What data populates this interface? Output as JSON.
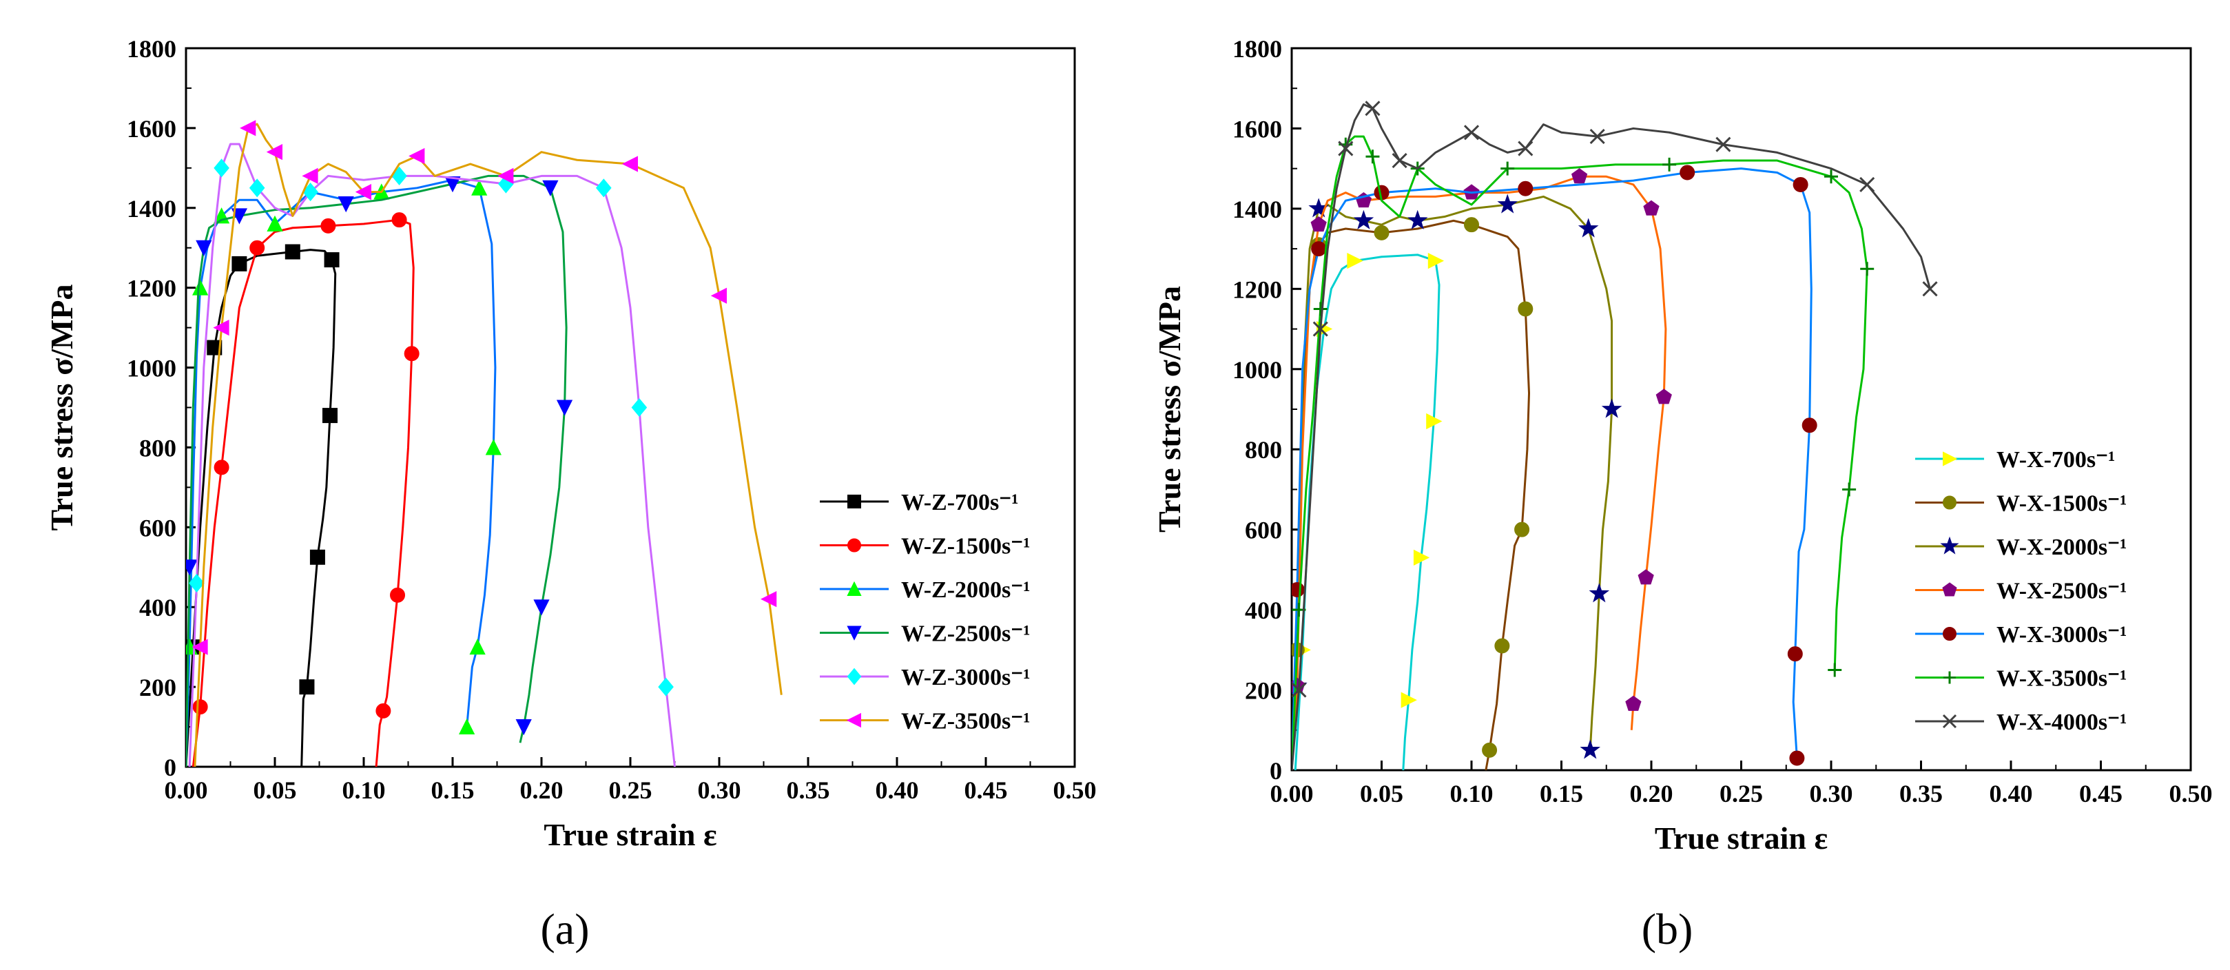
{
  "chart_data": [
    {
      "type": "line",
      "panel_label": "(a)",
      "xlabel": "True strain ε",
      "ylabel": "True stress σ/MPa",
      "xlim": [
        0,
        0.5
      ],
      "ylim": [
        0,
        1800
      ],
      "xticks": [
        "0.00",
        "0.05",
        "0.10",
        "0.15",
        "0.20",
        "0.25",
        "0.30",
        "0.35",
        "0.40",
        "0.45",
        "0.50"
      ],
      "yticks": [
        "0",
        "200",
        "400",
        "600",
        "800",
        "1000",
        "1200",
        "1400",
        "1600",
        "1800"
      ],
      "legend_position": "bottom-right",
      "series": [
        {
          "name": "W-Z-700s⁻¹",
          "color": "#000000",
          "marker": "square",
          "x": [
            0.0,
            0.004,
            0.008,
            0.012,
            0.016,
            0.02,
            0.025,
            0.03,
            0.04,
            0.05,
            0.06,
            0.07,
            0.078,
            0.082,
            0.084,
            0.083,
            0.081,
            0.079,
            0.077,
            0.074,
            0.072,
            0.07,
            0.068,
            0.066,
            0.065
          ],
          "y": [
            0,
            300,
            600,
            850,
            1050,
            1150,
            1230,
            1260,
            1280,
            1285,
            1290,
            1295,
            1292,
            1270,
            1235,
            1050,
            880,
            700,
            620,
            525,
            420,
            300,
            200,
            170,
            0
          ]
        },
        {
          "name": "W-Z-1500s⁻¹",
          "color": "#ff0000",
          "marker": "circle",
          "x": [
            0.004,
            0.008,
            0.012,
            0.016,
            0.02,
            0.025,
            0.03,
            0.04,
            0.05,
            0.06,
            0.08,
            0.1,
            0.11,
            0.12,
            0.126,
            0.128,
            0.127,
            0.125,
            0.122,
            0.119,
            0.116,
            0.113,
            0.111,
            0.109,
            0.107
          ],
          "y": [
            0,
            150,
            400,
            600,
            750,
            950,
            1150,
            1300,
            1340,
            1350,
            1355,
            1360,
            1365,
            1370,
            1360,
            1250,
            1035,
            800,
            600,
            430,
            300,
            175,
            140,
            105,
            0
          ]
        },
        {
          "name": "W-Z-2000s⁻¹",
          "color": "#00ff00",
          "marker": "triangle-up",
          "x": [
            0.0,
            0.002,
            0.004,
            0.006,
            0.008,
            0.012,
            0.016,
            0.02,
            0.03,
            0.04,
            0.05,
            0.07,
            0.09,
            0.11,
            0.13,
            0.15,
            0.165,
            0.172,
            0.174,
            0.173,
            0.171,
            0.168,
            0.164,
            0.161,
            0.159,
            0.158
          ],
          "y": [
            0,
            300,
            700,
            1030,
            1200,
            1300,
            1350,
            1380,
            1420,
            1420,
            1360,
            1440,
            1420,
            1440,
            1450,
            1470,
            1450,
            1310,
            1000,
            800,
            580,
            430,
            300,
            250,
            150,
            100
          ]
        },
        {
          "name": "W-Z-2500s⁻¹",
          "color": "#0000ff",
          "marker": "triangle-down",
          "x": [
            0.0,
            0.002,
            0.004,
            0.007,
            0.01,
            0.013,
            0.02,
            0.03,
            0.05,
            0.07,
            0.09,
            0.11,
            0.13,
            0.15,
            0.17,
            0.19,
            0.205,
            0.212,
            0.214,
            0.213,
            0.21,
            0.205,
            0.2,
            0.195,
            0.193,
            0.19,
            0.188
          ],
          "y": [
            0,
            500,
            900,
            1200,
            1300,
            1350,
            1370,
            1380,
            1395,
            1400,
            1410,
            1420,
            1440,
            1460,
            1480,
            1480,
            1450,
            1340,
            1100,
            900,
            700,
            530,
            400,
            250,
            180,
            100,
            60
          ]
        },
        {
          "name": "W-Z-3000s⁻¹",
          "color": "#00ffff",
          "marker": "diamond",
          "x": [
            0.002,
            0.006,
            0.01,
            0.015,
            0.02,
            0.025,
            0.03,
            0.04,
            0.05,
            0.06,
            0.07,
            0.08,
            0.1,
            0.12,
            0.14,
            0.16,
            0.18,
            0.2,
            0.22,
            0.235,
            0.245,
            0.25,
            0.255,
            0.26,
            0.265,
            0.27,
            0.273,
            0.275
          ],
          "y": [
            0,
            460,
            1000,
            1300,
            1500,
            1560,
            1560,
            1450,
            1400,
            1380,
            1440,
            1480,
            1470,
            1480,
            1480,
            1470,
            1460,
            1480,
            1480,
            1450,
            1300,
            1150,
            900,
            600,
            400,
            200,
            80,
            0
          ]
        },
        {
          "name": "W-Z-3500s⁻¹",
          "color": "#ff00ff",
          "marker": "triangle-left",
          "x": [
            0.005,
            0.008,
            0.01,
            0.015,
            0.02,
            0.025,
            0.03,
            0.035,
            0.04,
            0.045,
            0.05,
            0.055,
            0.06,
            0.07,
            0.08,
            0.09,
            0.1,
            0.11,
            0.12,
            0.13,
            0.14,
            0.16,
            0.18,
            0.2,
            0.22,
            0.25,
            0.28,
            0.295,
            0.3,
            0.31,
            0.32,
            0.328,
            0.335
          ],
          "y": [
            0,
            300,
            500,
            850,
            1100,
            1300,
            1500,
            1600,
            1610,
            1570,
            1540,
            1450,
            1380,
            1480,
            1510,
            1490,
            1440,
            1440,
            1510,
            1530,
            1480,
            1510,
            1480,
            1540,
            1520,
            1510,
            1450,
            1300,
            1180,
            900,
            600,
            420,
            180
          ]
        }
      ],
      "legend_color_order": [
        "#000000",
        "#ff0000",
        "#00ff00",
        "#0000ff",
        "#00ffff",
        "#ff00ff"
      ],
      "line_colors": [
        "#000000",
        "#ff0000",
        "#0070ff",
        "#00a040",
        "#cc66ff",
        "#e0a000"
      ]
    },
    {
      "type": "line",
      "panel_label": "(b)",
      "xlabel": "True strain ε",
      "ylabel": "True stress σ/MPa",
      "xlim": [
        0,
        0.5
      ],
      "ylim": [
        0,
        1800
      ],
      "xticks": [
        "0.00",
        "0.05",
        "0.10",
        "0.15",
        "0.20",
        "0.25",
        "0.30",
        "0.35",
        "0.40",
        "0.45",
        "0.50"
      ],
      "yticks": [
        "0",
        "200",
        "400",
        "600",
        "800",
        "1000",
        "1200",
        "1400",
        "1600",
        "1800"
      ],
      "legend_position": "bottom-right",
      "series": [
        {
          "name": "W-X-700s⁻¹",
          "color": "#ffff00",
          "marker": "triangle-right",
          "x": [
            0.002,
            0.006,
            0.01,
            0.014,
            0.018,
            0.022,
            0.028,
            0.035,
            0.05,
            0.07,
            0.08,
            0.082,
            0.081,
            0.079,
            0.077,
            0.075,
            0.072,
            0.07,
            0.067,
            0.065,
            0.063,
            0.062
          ],
          "y": [
            0,
            300,
            700,
            950,
            1100,
            1200,
            1250,
            1270,
            1280,
            1285,
            1270,
            1210,
            1050,
            870,
            750,
            650,
            530,
            420,
            300,
            175,
            80,
            0
          ]
        },
        {
          "name": "W-X-1500s⁻¹",
          "color": "#808000",
          "marker": "circle",
          "x": [
            0.0,
            0.003,
            0.006,
            0.01,
            0.015,
            0.02,
            0.03,
            0.05,
            0.07,
            0.09,
            0.1,
            0.12,
            0.126,
            0.13,
            0.132,
            0.131,
            0.128,
            0.124,
            0.12,
            0.117,
            0.114,
            0.112,
            0.11,
            0.108
          ],
          "y": [
            0,
            300,
            900,
            1200,
            1310,
            1340,
            1350,
            1340,
            1350,
            1370,
            1360,
            1330,
            1300,
            1150,
            940,
            800,
            600,
            560,
            420,
            310,
            165,
            110,
            50,
            0
          ]
        },
        {
          "name": "W-X-2000s⁻¹",
          "color": "#000080",
          "marker": "star",
          "x": [
            0.0,
            0.003,
            0.006,
            0.01,
            0.015,
            0.02,
            0.03,
            0.04,
            0.05,
            0.06,
            0.07,
            0.085,
            0.1,
            0.12,
            0.14,
            0.155,
            0.165,
            0.175,
            0.178,
            0.178,
            0.176,
            0.173,
            0.171,
            0.169,
            0.167,
            0.166
          ],
          "y": [
            0,
            210,
            950,
            1300,
            1400,
            1410,
            1380,
            1370,
            1360,
            1380,
            1370,
            1380,
            1400,
            1410,
            1430,
            1400,
            1350,
            1200,
            1120,
            900,
            720,
            600,
            440,
            260,
            130,
            50
          ]
        },
        {
          "name": "W-X-2500s⁻¹",
          "color": "#800080",
          "marker": "pentagon",
          "x": [
            0.0,
            0.003,
            0.006,
            0.01,
            0.015,
            0.02,
            0.03,
            0.04,
            0.06,
            0.08,
            0.1,
            0.12,
            0.14,
            0.16,
            0.175,
            0.19,
            0.2,
            0.205,
            0.208,
            0.207,
            0.204,
            0.2,
            0.197,
            0.194,
            0.192,
            0.19,
            0.189
          ],
          "y": [
            0,
            210,
            800,
            1200,
            1360,
            1420,
            1440,
            1420,
            1430,
            1430,
            1440,
            1440,
            1450,
            1480,
            1480,
            1460,
            1400,
            1300,
            1100,
            930,
            800,
            610,
            480,
            350,
            250,
            165,
            100
          ]
        },
        {
          "name": "W-X-3000s⁻¹",
          "color": "#8b0000",
          "marker": "circle",
          "x": [
            0.0,
            0.003,
            0.006,
            0.01,
            0.015,
            0.02,
            0.03,
            0.05,
            0.08,
            0.1,
            0.13,
            0.16,
            0.19,
            0.22,
            0.25,
            0.27,
            0.283,
            0.288,
            0.289,
            0.288,
            0.285,
            0.282,
            0.28,
            0.279,
            0.28,
            0.281
          ],
          "y": [
            0,
            450,
            1000,
            1200,
            1300,
            1350,
            1420,
            1440,
            1450,
            1440,
            1450,
            1460,
            1470,
            1490,
            1500,
            1490,
            1460,
            1390,
            1200,
            860,
            600,
            545,
            290,
            170,
            100,
            30
          ]
        },
        {
          "name": "W-X-3500s⁻¹",
          "color": "#008000",
          "marker": "plus",
          "x": [
            0.0,
            0.004,
            0.008,
            0.012,
            0.016,
            0.02,
            0.025,
            0.03,
            0.035,
            0.04,
            0.045,
            0.05,
            0.06,
            0.07,
            0.08,
            0.1,
            0.12,
            0.15,
            0.18,
            0.21,
            0.24,
            0.27,
            0.3,
            0.31,
            0.317,
            0.32,
            0.318,
            0.314,
            0.31,
            0.306,
            0.303,
            0.302
          ],
          "y": [
            0,
            400,
            700,
            900,
            1150,
            1350,
            1480,
            1560,
            1580,
            1580,
            1530,
            1420,
            1380,
            1500,
            1460,
            1410,
            1500,
            1500,
            1510,
            1510,
            1520,
            1520,
            1480,
            1440,
            1350,
            1250,
            1000,
            880,
            700,
            580,
            400,
            250
          ]
        },
        {
          "name": "W-X-4000s⁻¹",
          "color": "#404040",
          "marker": "cross",
          "x": [
            0.0,
            0.004,
            0.008,
            0.012,
            0.016,
            0.02,
            0.025,
            0.03,
            0.035,
            0.04,
            0.045,
            0.05,
            0.055,
            0.06,
            0.07,
            0.08,
            0.1,
            0.11,
            0.12,
            0.13,
            0.14,
            0.15,
            0.17,
            0.19,
            0.21,
            0.24,
            0.27,
            0.3,
            0.32,
            0.34,
            0.35,
            0.355
          ],
          "y": [
            0,
            200,
            500,
            800,
            1100,
            1300,
            1450,
            1550,
            1620,
            1660,
            1650,
            1600,
            1560,
            1520,
            1500,
            1540,
            1590,
            1560,
            1540,
            1550,
            1610,
            1590,
            1580,
            1600,
            1590,
            1560,
            1540,
            1500,
            1460,
            1350,
            1280,
            1200
          ]
        }
      ],
      "line_colors": [
        "#00d0d0",
        "#804000",
        "#808000",
        "#ff6a00",
        "#0080ff",
        "#00c000",
        "#404040"
      ]
    }
  ]
}
